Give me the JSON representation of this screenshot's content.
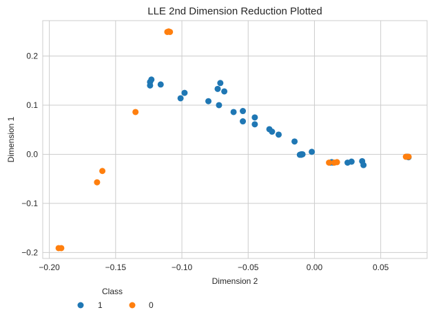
{
  "chart_data": {
    "type": "scatter",
    "title": "LLE 2nd Dimension Reduction Plotted",
    "xlabel": "Dimension 2",
    "ylabel": "Dimension 1",
    "xlim": [
      -0.205,
      0.085
    ],
    "ylim": [
      -0.212,
      0.272
    ],
    "xticks": [
      -0.2,
      -0.15,
      -0.1,
      -0.05,
      0.0,
      0.05
    ],
    "xtick_labels": [
      "−0.20",
      "−0.15",
      "−0.10",
      "−0.05",
      "0.00",
      "0.05"
    ],
    "yticks": [
      -0.2,
      -0.1,
      0.0,
      0.1,
      0.2
    ],
    "ytick_labels": [
      "−0.2",
      "−0.1",
      "0.0",
      "0.1",
      "0.2"
    ],
    "grid": true,
    "legend": {
      "title": "Class",
      "placement": "bottom-left, below plot"
    },
    "series": [
      {
        "name": "1",
        "color": "#1f77b4",
        "points": [
          [
            -0.123,
            0.152
          ],
          [
            -0.124,
            0.147
          ],
          [
            -0.124,
            0.14
          ],
          [
            -0.116,
            0.142
          ],
          [
            -0.098,
            0.125
          ],
          [
            -0.101,
            0.114
          ],
          [
            -0.071,
            0.145
          ],
          [
            -0.073,
            0.133
          ],
          [
            -0.068,
            0.128
          ],
          [
            -0.08,
            0.108
          ],
          [
            -0.072,
            0.1
          ],
          [
            -0.061,
            0.086
          ],
          [
            -0.054,
            0.088
          ],
          [
            -0.054,
            0.067
          ],
          [
            -0.045,
            0.075
          ],
          [
            -0.045,
            0.061
          ],
          [
            -0.034,
            0.051
          ],
          [
            -0.032,
            0.046
          ],
          [
            -0.027,
            0.04
          ],
          [
            -0.015,
            0.026
          ],
          [
            -0.002,
            0.005
          ],
          [
            -0.01,
            0.0
          ],
          [
            -0.01,
            -0.001
          ],
          [
            -0.009,
            0.0
          ],
          [
            -0.011,
            -0.001
          ],
          [
            0.012,
            -0.017
          ],
          [
            0.013,
            -0.016
          ],
          [
            0.014,
            -0.017
          ],
          [
            0.025,
            -0.017
          ],
          [
            0.028,
            -0.015
          ],
          [
            0.036,
            -0.014
          ],
          [
            0.037,
            -0.022
          ],
          [
            0.07,
            -0.005
          ],
          [
            0.071,
            -0.006
          ]
        ]
      },
      {
        "name": "0",
        "color": "#ff7f0e",
        "points": [
          [
            -0.111,
            0.249
          ],
          [
            -0.109,
            0.249
          ],
          [
            -0.11,
            0.25
          ],
          [
            -0.135,
            0.086
          ],
          [
            -0.16,
            -0.034
          ],
          [
            -0.164,
            -0.057
          ],
          [
            -0.193,
            -0.191
          ],
          [
            -0.191,
            -0.191
          ],
          [
            0.011,
            -0.017
          ],
          [
            0.015,
            -0.017
          ],
          [
            0.017,
            -0.016
          ],
          [
            0.069,
            -0.005
          ],
          [
            0.071,
            -0.005
          ]
        ]
      }
    ]
  }
}
